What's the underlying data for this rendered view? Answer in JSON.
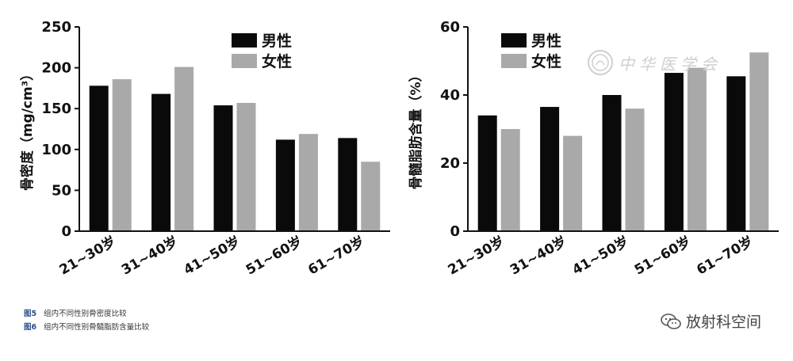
{
  "chart_data": [
    {
      "type": "bar",
      "categories": [
        "21~30岁",
        "31~40岁",
        "41~50岁",
        "51~60岁",
        "61~70岁"
      ],
      "series": [
        {
          "name": "男性",
          "values": [
            178,
            168,
            154,
            112,
            114
          ],
          "color": "#0a0a0a"
        },
        {
          "name": "女性",
          "values": [
            186,
            201,
            157,
            119,
            85
          ],
          "color": "#a9a9a9"
        }
      ],
      "ylabel": "骨密度（mg/cm³）",
      "ylim": [
        0,
        250
      ],
      "yticks": [
        0,
        50,
        100,
        150,
        200,
        250
      ],
      "legend": "top-right"
    },
    {
      "type": "bar",
      "categories": [
        "21~30岁",
        "31~40岁",
        "41~50岁",
        "51~60岁",
        "61~70岁"
      ],
      "series": [
        {
          "name": "男性",
          "values": [
            34,
            36.5,
            40,
            46.5,
            45.5
          ],
          "color": "#0a0a0a"
        },
        {
          "name": "女性",
          "values": [
            30,
            28,
            36,
            48,
            52.5
          ],
          "color": "#a9a9a9"
        }
      ],
      "ylabel": "骨髓脂肪含量（%）",
      "ylim": [
        0,
        60
      ],
      "yticks": [
        0,
        20,
        40,
        60
      ],
      "legend": "top-left"
    }
  ],
  "captions": [
    {
      "fig": "图5",
      "text": "组内不同性别骨密度比较"
    },
    {
      "fig": "图6",
      "text": "组内不同性别骨髓脂肪含量比较"
    }
  ],
  "source_label": "放射科空间",
  "watermark_text": "中华医学会"
}
